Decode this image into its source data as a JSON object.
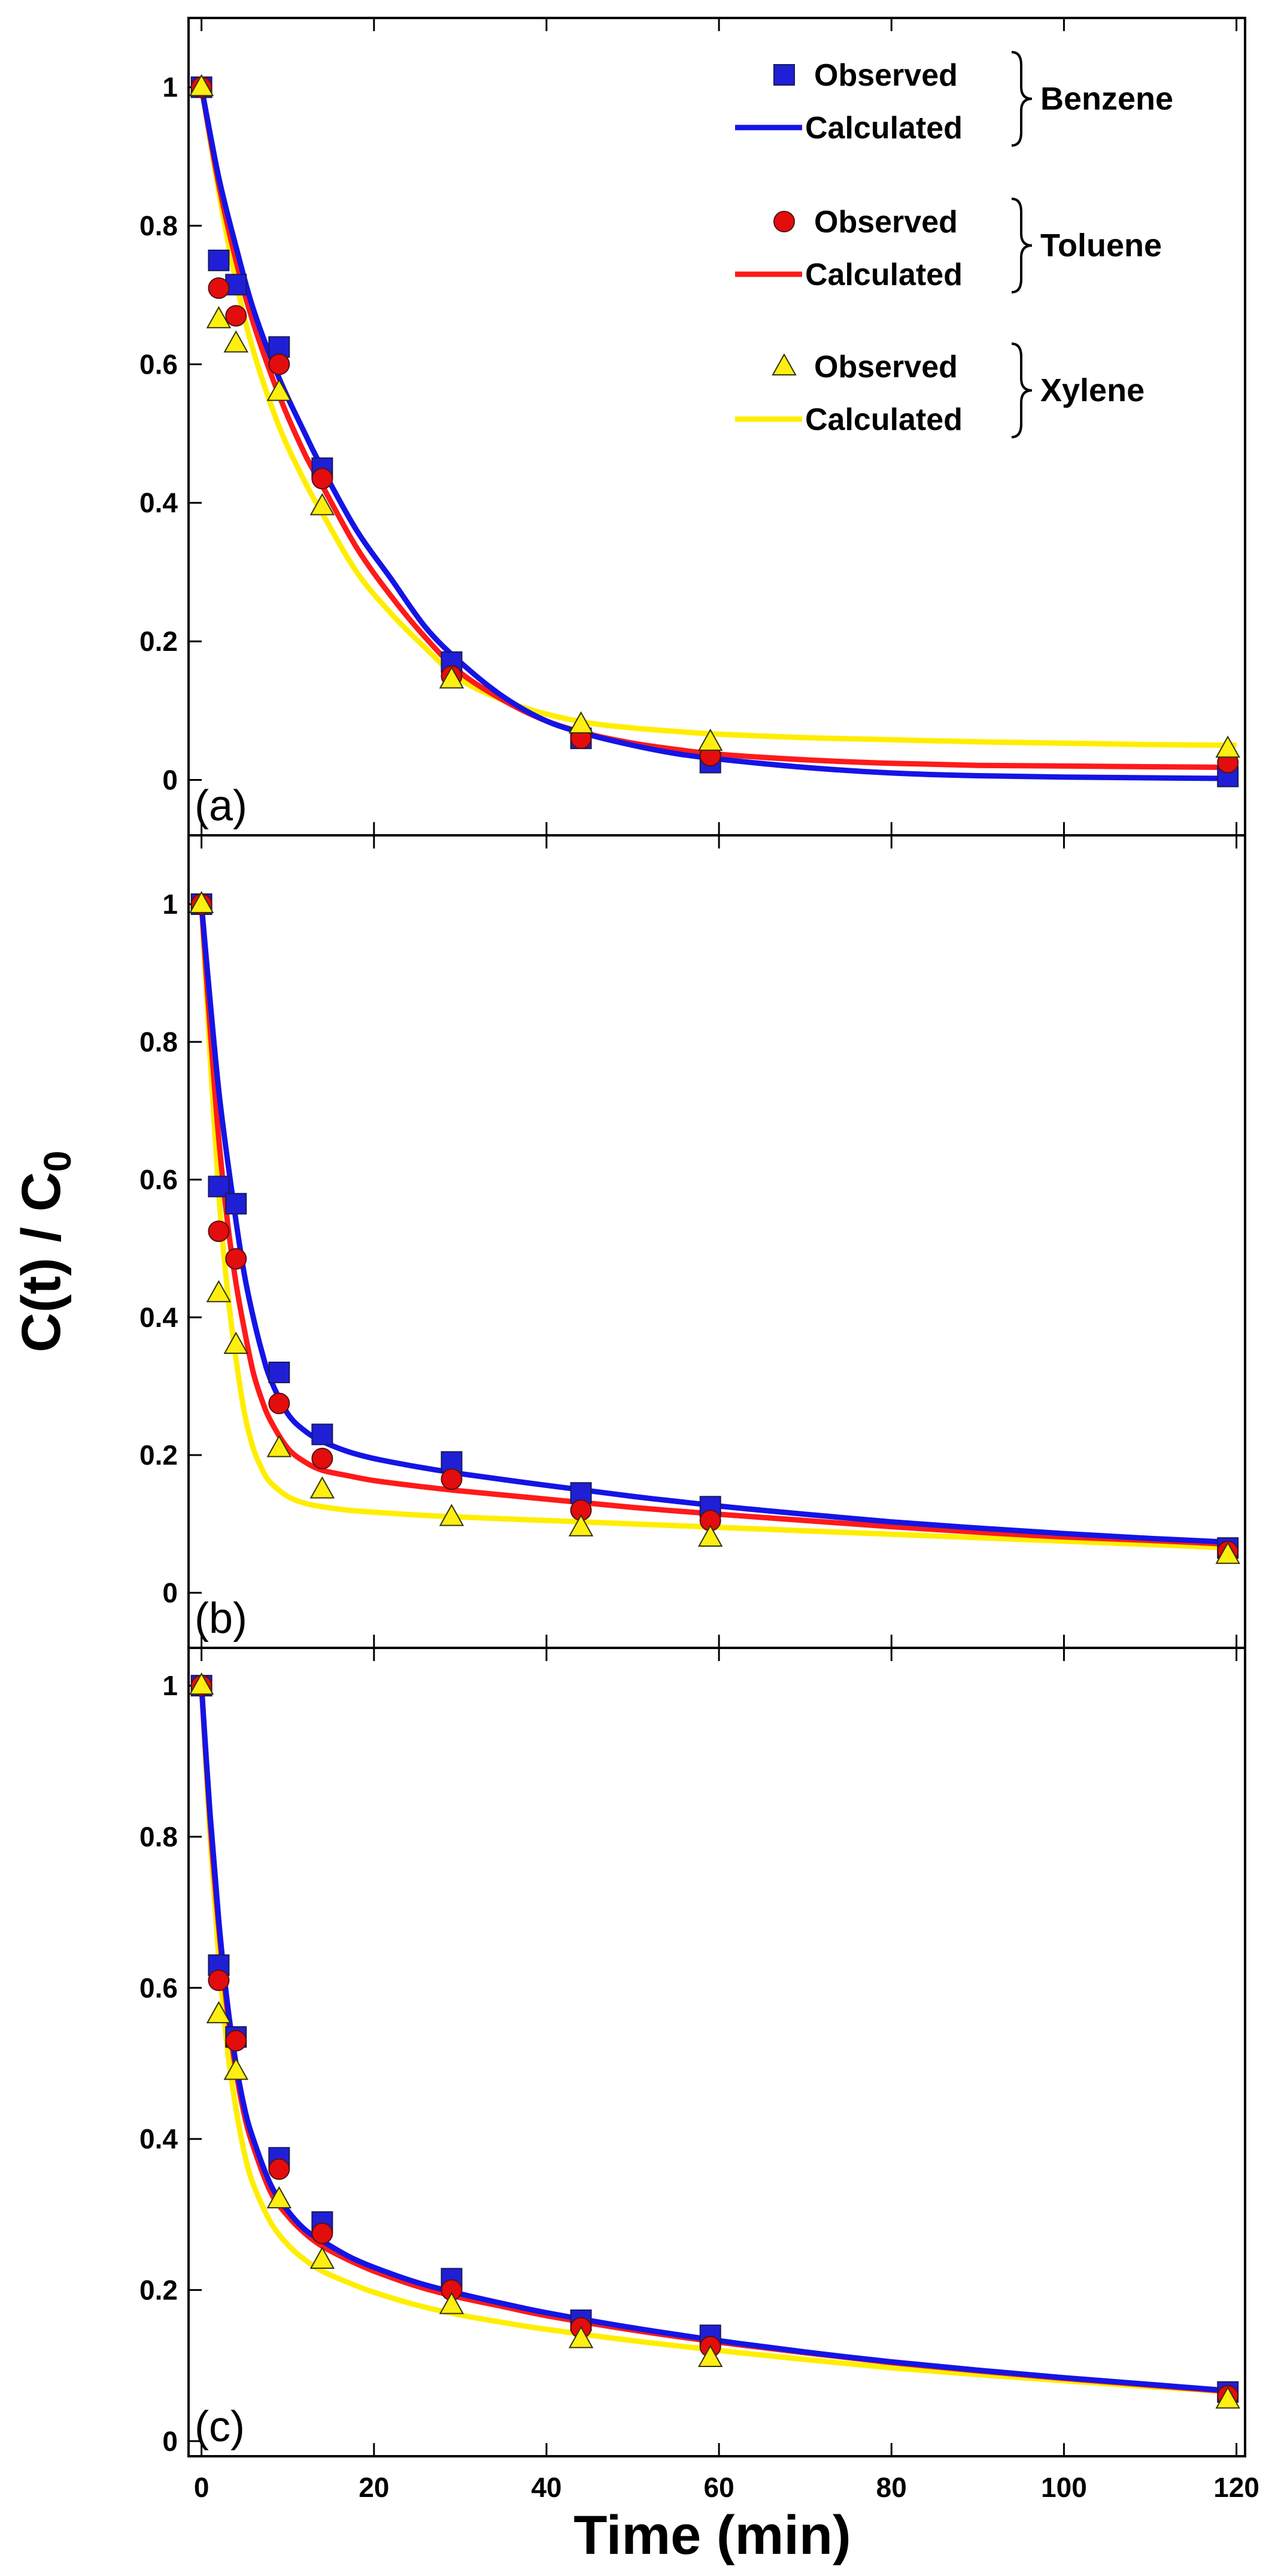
{
  "chart_data": {
    "type": "scatter",
    "ylabel_main": "C(t) / C",
    "ylabel_sub": "0",
    "xlabel": "Time (min)",
    "x_ticks": [
      "0",
      "20",
      "40",
      "60",
      "80",
      "100",
      "120"
    ],
    "xlim": [
      -1.5,
      121
    ],
    "legend": {
      "groups": [
        {
          "compound": "Benzene",
          "observed_label": "Observed",
          "calculated_label": "Calculated"
        },
        {
          "compound": "Toluene",
          "observed_label": "Observed",
          "calculated_label": "Calculated"
        },
        {
          "compound": "Xylene",
          "observed_label": "Observed",
          "calculated_label": "Calculated"
        }
      ]
    },
    "colors": {
      "benzene_marker": "#1f1fd6",
      "benzene_line": "#1414e6",
      "toluene_marker": "#e30d0d",
      "toluene_line": "#ff1a1a",
      "xylene_marker": "#ffee11",
      "xylene_line": "#ffee00"
    },
    "panels": [
      {
        "label": "(a)",
        "ylim": [
          -0.08,
          1.1
        ],
        "y_ticks": [
          "0",
          "0.2",
          "0.4",
          "0.6",
          "0.8",
          "1"
        ],
        "series": [
          {
            "name": "Benzene",
            "observed": {
              "x": [
                0,
                2,
                4,
                9,
                14,
                29,
                44,
                59,
                119
              ],
              "y": [
                1.0,
                0.75,
                0.715,
                0.625,
                0.45,
                0.17,
                0.06,
                0.025,
                0.005
              ]
            },
            "calculated": {
              "x": [
                0,
                2,
                4,
                6,
                9,
                12,
                14,
                18,
                22,
                26,
                30,
                35,
                40,
                45,
                50,
                55,
                60,
                70,
                80,
                90,
                100,
                110,
                120
              ],
              "y": [
                1.0,
                0.87,
                0.77,
                0.68,
                0.58,
                0.5,
                0.45,
                0.36,
                0.29,
                0.22,
                0.17,
                0.12,
                0.085,
                0.065,
                0.05,
                0.038,
                0.03,
                0.018,
                0.01,
                0.006,
                0.004,
                0.003,
                0.002
              ]
            }
          },
          {
            "name": "Toluene",
            "observed": {
              "x": [
                0,
                2,
                4,
                9,
                14,
                29,
                44,
                59,
                119
              ],
              "y": [
                1.0,
                0.71,
                0.67,
                0.6,
                0.435,
                0.15,
                0.06,
                0.035,
                0.025
              ]
            },
            "calculated": {
              "x": [
                0,
                2,
                4,
                6,
                9,
                12,
                14,
                18,
                22,
                26,
                30,
                35,
                40,
                45,
                50,
                55,
                60,
                70,
                80,
                90,
                100,
                110,
                120
              ],
              "y": [
                1.0,
                0.86,
                0.75,
                0.66,
                0.555,
                0.47,
                0.425,
                0.335,
                0.265,
                0.205,
                0.155,
                0.115,
                0.085,
                0.066,
                0.053,
                0.044,
                0.037,
                0.029,
                0.024,
                0.021,
                0.02,
                0.019,
                0.018
              ]
            }
          },
          {
            "name": "Xylene",
            "observed": {
              "x": [
                0,
                2,
                4,
                9,
                14,
                29,
                44,
                59,
                119
              ],
              "y": [
                1.0,
                0.665,
                0.63,
                0.56,
                0.395,
                0.145,
                0.08,
                0.055,
                0.045
              ]
            },
            "calculated": {
              "x": [
                0,
                2,
                4,
                6,
                9,
                12,
                14,
                18,
                22,
                26,
                30,
                35,
                40,
                45,
                50,
                55,
                60,
                70,
                80,
                90,
                100,
                110,
                120
              ],
              "y": [
                1.0,
                0.85,
                0.72,
                0.62,
                0.51,
                0.43,
                0.385,
                0.3,
                0.24,
                0.19,
                0.145,
                0.115,
                0.095,
                0.082,
                0.075,
                0.07,
                0.066,
                0.061,
                0.058,
                0.055,
                0.053,
                0.051,
                0.05
              ]
            }
          }
        ]
      },
      {
        "label": "(b)",
        "ylim": [
          -0.08,
          1.1
        ],
        "y_ticks": [
          "0",
          "0.2",
          "0.4",
          "0.6",
          "0.8",
          "1"
        ],
        "series": [
          {
            "name": "Benzene",
            "observed": {
              "x": [
                0,
                2,
                4,
                9,
                14,
                29,
                44,
                59,
                119
              ],
              "y": [
                1.0,
                0.59,
                0.565,
                0.32,
                0.23,
                0.19,
                0.145,
                0.125,
                0.065
              ]
            },
            "calculated": {
              "x": [
                0,
                1,
                2,
                3,
                4,
                5,
                6,
                7,
                8,
                10,
                12,
                14,
                17,
                20,
                25,
                30,
                40,
                50,
                60,
                70,
                80,
                90,
                100,
                110,
                120
              ],
              "y": [
                1.0,
                0.86,
                0.73,
                0.63,
                0.54,
                0.46,
                0.4,
                0.35,
                0.31,
                0.26,
                0.235,
                0.22,
                0.205,
                0.195,
                0.183,
                0.173,
                0.156,
                0.14,
                0.126,
                0.114,
                0.103,
                0.094,
                0.086,
                0.079,
                0.073
              ]
            }
          },
          {
            "name": "Toluene",
            "observed": {
              "x": [
                0,
                2,
                4,
                9,
                14,
                29,
                44,
                59,
                119
              ],
              "y": [
                1.0,
                0.525,
                0.485,
                0.275,
                0.195,
                0.165,
                0.12,
                0.105,
                0.06
              ]
            },
            "calculated": {
              "x": [
                0,
                1,
                2,
                3,
                4,
                5,
                6,
                7,
                8,
                10,
                12,
                14,
                17,
                20,
                25,
                30,
                40,
                50,
                60,
                70,
                80,
                90,
                100,
                110,
                120
              ],
              "y": [
                1.0,
                0.82,
                0.66,
                0.54,
                0.45,
                0.38,
                0.32,
                0.28,
                0.25,
                0.21,
                0.19,
                0.178,
                0.17,
                0.163,
                0.155,
                0.148,
                0.136,
                0.124,
                0.114,
                0.105,
                0.096,
                0.088,
                0.081,
                0.076,
                0.07
              ]
            }
          },
          {
            "name": "Xylene",
            "observed": {
              "x": [
                0,
                2,
                4,
                9,
                14,
                29,
                44,
                59,
                119
              ],
              "y": [
                1.0,
                0.435,
                0.36,
                0.21,
                0.15,
                0.11,
                0.095,
                0.08,
                0.055
              ]
            },
            "calculated": {
              "x": [
                0,
                1,
                2,
                3,
                4,
                5,
                6,
                7,
                8,
                10,
                12,
                14,
                17,
                20,
                25,
                30,
                40,
                50,
                60,
                70,
                80,
                90,
                100,
                110,
                120
              ],
              "y": [
                1.0,
                0.78,
                0.58,
                0.44,
                0.34,
                0.26,
                0.21,
                0.18,
                0.16,
                0.14,
                0.13,
                0.125,
                0.12,
                0.117,
                0.113,
                0.11,
                0.105,
                0.1,
                0.095,
                0.09,
                0.085,
                0.08,
                0.075,
                0.07,
                0.065
              ]
            }
          }
        ]
      },
      {
        "label": "(c)",
        "ylim": [
          -0.02,
          1.05
        ],
        "y_ticks": [
          "0",
          "0.2",
          "0.4",
          "0.6",
          "0.8",
          "1"
        ],
        "series": [
          {
            "name": "Benzene",
            "observed": {
              "x": [
                0,
                2,
                4,
                9,
                14,
                29,
                44,
                59,
                119
              ],
              "y": [
                1.0,
                0.63,
                0.535,
                0.375,
                0.29,
                0.215,
                0.16,
                0.14,
                0.065
              ]
            },
            "calculated": {
              "x": [
                0,
                1,
                2,
                3,
                4,
                5,
                6,
                8,
                10,
                12,
                14,
                17,
                20,
                25,
                30,
                35,
                40,
                50,
                60,
                70,
                80,
                90,
                100,
                110,
                120
              ],
              "y": [
                1.0,
                0.83,
                0.69,
                0.58,
                0.5,
                0.44,
                0.4,
                0.34,
                0.305,
                0.28,
                0.265,
                0.245,
                0.23,
                0.21,
                0.195,
                0.182,
                0.17,
                0.15,
                0.133,
                0.118,
                0.105,
                0.094,
                0.084,
                0.075,
                0.066
              ]
            }
          },
          {
            "name": "Toluene",
            "observed": {
              "x": [
                0,
                2,
                4,
                9,
                14,
                29,
                44,
                59,
                119
              ],
              "y": [
                1.0,
                0.61,
                0.53,
                0.36,
                0.275,
                0.2,
                0.15,
                0.125,
                0.06
              ]
            },
            "calculated": {
              "x": [
                0,
                1,
                2,
                3,
                4,
                5,
                6,
                8,
                10,
                12,
                14,
                17,
                20,
                25,
                30,
                35,
                40,
                50,
                60,
                70,
                80,
                90,
                100,
                110,
                120
              ],
              "y": [
                1.0,
                0.82,
                0.68,
                0.57,
                0.49,
                0.43,
                0.39,
                0.33,
                0.298,
                0.275,
                0.258,
                0.24,
                0.225,
                0.205,
                0.19,
                0.178,
                0.166,
                0.147,
                0.131,
                0.117,
                0.104,
                0.093,
                0.083,
                0.074,
                0.065
              ]
            }
          },
          {
            "name": "Xylene",
            "observed": {
              "x": [
                0,
                2,
                4,
                9,
                14,
                29,
                44,
                59,
                119
              ],
              "y": [
                1.0,
                0.565,
                0.49,
                0.32,
                0.24,
                0.18,
                0.135,
                0.11,
                0.055
              ]
            },
            "calculated": {
              "x": [
                0,
                1,
                2,
                3,
                4,
                5,
                6,
                8,
                10,
                12,
                14,
                17,
                20,
                25,
                30,
                35,
                40,
                50,
                60,
                70,
                80,
                90,
                100,
                110,
                120
              ],
              "y": [
                1.0,
                0.8,
                0.64,
                0.52,
                0.44,
                0.38,
                0.34,
                0.29,
                0.26,
                0.24,
                0.225,
                0.21,
                0.197,
                0.18,
                0.167,
                0.157,
                0.148,
                0.133,
                0.12,
                0.108,
                0.097,
                0.088,
                0.08,
                0.072,
                0.065
              ]
            }
          }
        ]
      }
    ]
  }
}
